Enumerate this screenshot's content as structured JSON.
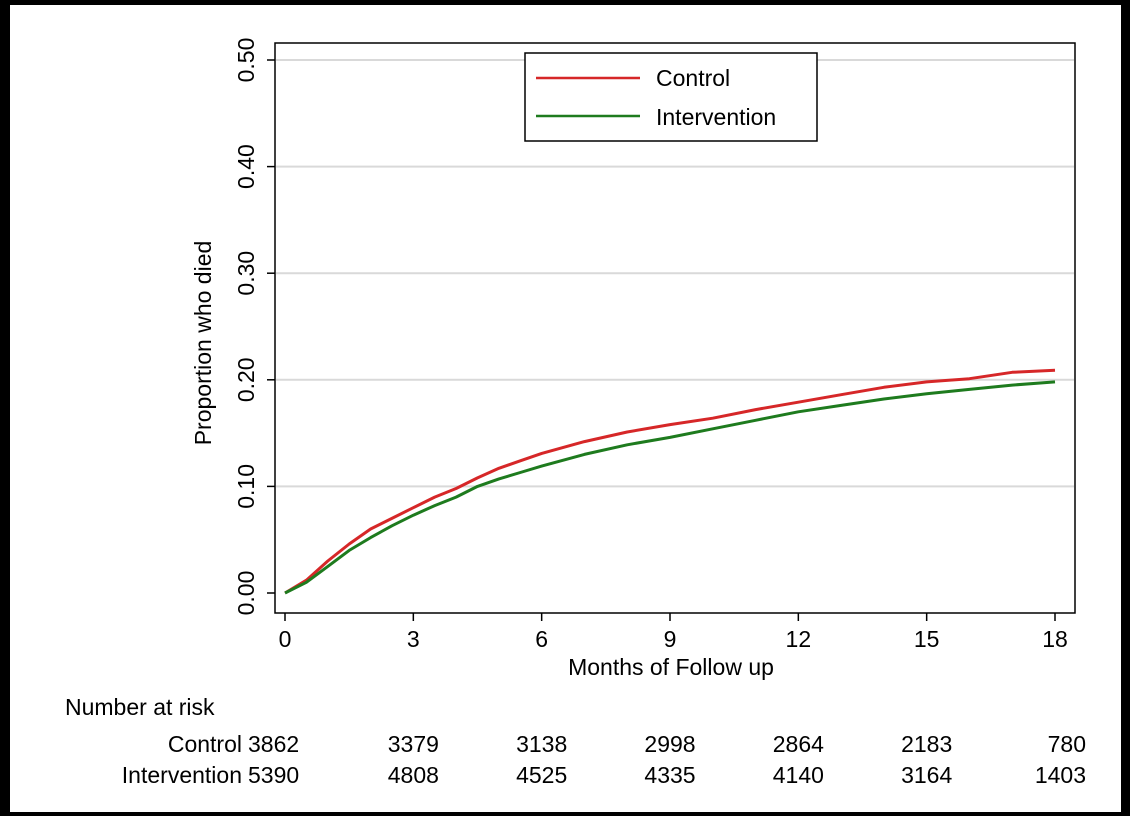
{
  "chart_data": {
    "type": "line",
    "title": "",
    "xlabel": "Months of Follow up",
    "ylabel": "Proportion who died",
    "xlim": [
      0,
      18
    ],
    "ylim": [
      0,
      0.5
    ],
    "x_ticks": [
      0,
      3,
      6,
      9,
      12,
      15,
      18
    ],
    "x_tick_labels": [
      "0",
      "3",
      "6",
      "9",
      "12",
      "15",
      "18"
    ],
    "y_ticks": [
      0,
      0.1,
      0.2,
      0.3,
      0.4,
      0.5
    ],
    "y_tick_labels": [
      "0.00",
      "0.10",
      "0.20",
      "0.30",
      "0.40",
      "0.50"
    ],
    "grid": "horizontal",
    "legend_position": "top-center",
    "series": [
      {
        "name": "Control",
        "color": "#d62728",
        "x": [
          0,
          0.5,
          1,
          1.5,
          2,
          2.5,
          3,
          3.5,
          4,
          4.5,
          5,
          5.5,
          6,
          7,
          8,
          9,
          10,
          11,
          12,
          13,
          14,
          15,
          16,
          17,
          18
        ],
        "y": [
          0,
          0.012,
          0.03,
          0.046,
          0.06,
          0.07,
          0.08,
          0.09,
          0.098,
          0.108,
          0.117,
          0.124,
          0.131,
          0.142,
          0.151,
          0.158,
          0.164,
          0.172,
          0.179,
          0.186,
          0.193,
          0.198,
          0.201,
          0.207,
          0.209
        ]
      },
      {
        "name": "Intervention",
        "color": "#1e7b1e",
        "x": [
          0,
          0.5,
          1,
          1.5,
          2,
          2.5,
          3,
          3.5,
          4,
          4.5,
          5,
          5.5,
          6,
          7,
          8,
          9,
          10,
          11,
          12,
          13,
          14,
          15,
          16,
          17,
          18
        ],
        "y": [
          0,
          0.01,
          0.025,
          0.04,
          0.052,
          0.063,
          0.073,
          0.082,
          0.09,
          0.1,
          0.107,
          0.113,
          0.119,
          0.13,
          0.139,
          0.146,
          0.154,
          0.162,
          0.17,
          0.176,
          0.182,
          0.187,
          0.191,
          0.195,
          0.198
        ]
      }
    ],
    "risk_table": {
      "heading": "Number at risk",
      "rows": [
        {
          "label": "Control",
          "values": [
            "3862",
            "3379",
            "3138",
            "2998",
            "2864",
            "2183",
            "780"
          ]
        },
        {
          "label": "Intervention",
          "values": [
            "5390",
            "4808",
            "4525",
            "4335",
            "4140",
            "3164",
            "1403"
          ]
        }
      ]
    }
  }
}
